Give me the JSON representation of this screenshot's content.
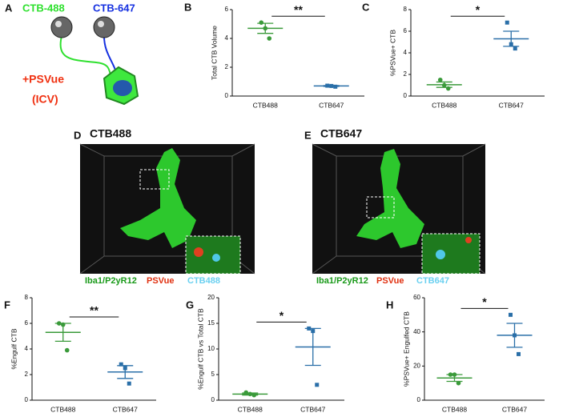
{
  "panel_a": {
    "label": "A",
    "labels": [
      "CTB-488",
      "CTB-647",
      "+PSVue",
      "(ICV)"
    ]
  },
  "images": [
    {
      "label": "D",
      "title": "CTB488",
      "legend": [
        "Iba1/P2yR12",
        "PSVue",
        "CTB488"
      ]
    },
    {
      "label": "E",
      "title": "CTB647",
      "legend": [
        "Iba1/P2yR12",
        "PSVue",
        "CTB647"
      ]
    }
  ],
  "chart_data": [
    {
      "type": "dotplot",
      "label": "B",
      "y_label": "Total CTB Volume",
      "categories": [
        "CTB488",
        "CTB647"
      ],
      "colors": [
        "#3a9a3a",
        "#2a6fa8"
      ],
      "markers": [
        "circle",
        "square"
      ],
      "points": [
        [
          5.1,
          4.7,
          4.0
        ],
        [
          0.72,
          0.7,
          0.65
        ]
      ],
      "mean": [
        4.7,
        0.7
      ],
      "sem": [
        0.35,
        0.03
      ],
      "significance": "**",
      "ylim": [
        0,
        6
      ],
      "yticks": [
        0,
        2,
        4,
        6
      ]
    },
    {
      "type": "dotplot",
      "label": "C",
      "y_label": "%PSVue+ CTB",
      "categories": [
        "CTB488",
        "CTB647"
      ],
      "colors": [
        "#3a9a3a",
        "#2a6fa8"
      ],
      "markers": [
        "circle",
        "square"
      ],
      "points": [
        [
          1.5,
          1.0,
          0.7
        ],
        [
          6.8,
          4.8,
          4.4
        ]
      ],
      "mean": [
        1.05,
        5.3
      ],
      "sem": [
        0.25,
        0.7
      ],
      "significance": "*",
      "ylim": [
        0,
        8
      ],
      "yticks": [
        0,
        2,
        4,
        6,
        8
      ]
    },
    {
      "type": "dotplot",
      "label": "F",
      "y_label": "%Engulf CTB",
      "categories": [
        "CTB488",
        "CTB647"
      ],
      "colors": [
        "#3a9a3a",
        "#2a6fa8"
      ],
      "markers": [
        "circle",
        "square"
      ],
      "points": [
        [
          6.0,
          5.9,
          3.9
        ],
        [
          2.8,
          2.5,
          1.3
        ]
      ],
      "mean": [
        5.3,
        2.2
      ],
      "sem": [
        0.7,
        0.5
      ],
      "significance": "**",
      "ylim": [
        0,
        8
      ],
      "yticks": [
        0,
        2,
        4,
        6,
        8
      ]
    },
    {
      "type": "dotplot",
      "label": "G",
      "y_label": "%Engulf CTB vs Total CTB",
      "categories": [
        "CTB488",
        "CTB647"
      ],
      "colors": [
        "#3a9a3a",
        "#2a6fa8"
      ],
      "markers": [
        "circle",
        "square"
      ],
      "points": [
        [
          1.5,
          1.2,
          1.0
        ],
        [
          14.0,
          13.5,
          3.0
        ]
      ],
      "mean": [
        1.2,
        10.4
      ],
      "sem": [
        0.2,
        3.6
      ],
      "significance": "*",
      "ylim": [
        0,
        20
      ],
      "yticks": [
        0,
        5,
        10,
        15,
        20
      ]
    },
    {
      "type": "dotplot",
      "label": "H",
      "y_label": "%PSVue+ Engulfed CTB",
      "categories": [
        "CTB488",
        "CTB647"
      ],
      "colors": [
        "#3a9a3a",
        "#2a6fa8"
      ],
      "markers": [
        "circle",
        "square"
      ],
      "points": [
        [
          15,
          15,
          10
        ],
        [
          50,
          38,
          27
        ]
      ],
      "mean": [
        13,
        38
      ],
      "sem": [
        2,
        7
      ],
      "significance": "*",
      "ylim": [
        0,
        60
      ],
      "yticks": [
        0,
        20,
        40,
        60
      ]
    }
  ]
}
